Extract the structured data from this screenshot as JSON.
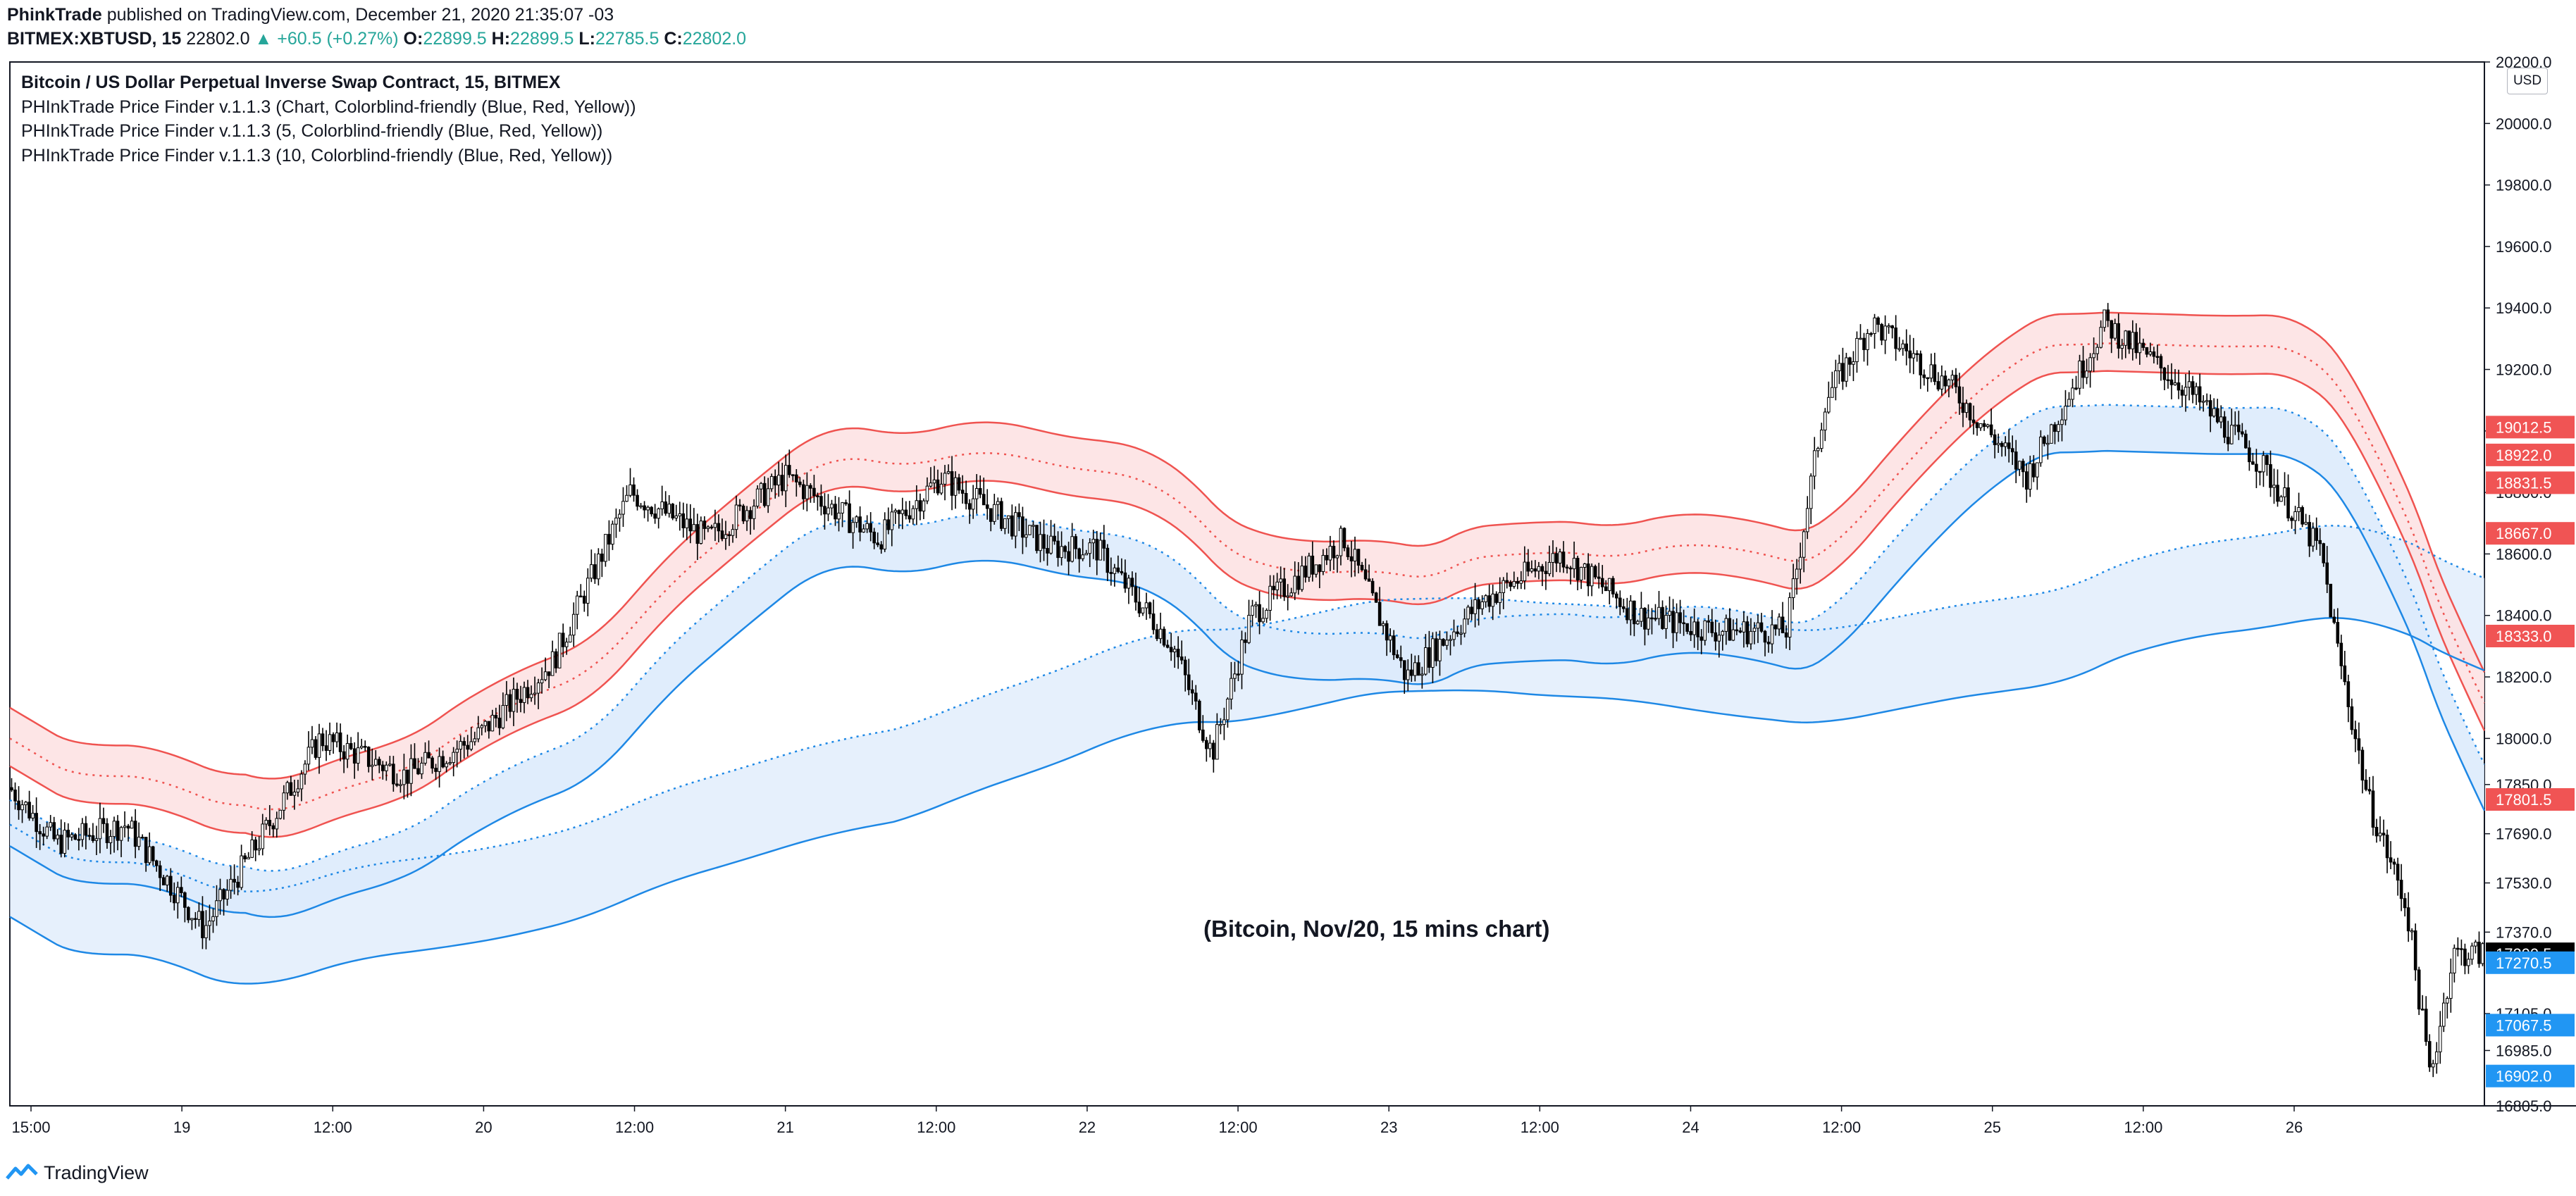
{
  "header": {
    "author": "PhinkTrade",
    "published_text": "published on TradingView.com, December 21, 2020 21:35:07 -03",
    "symbol": "BITMEX:XBTUSD, 15",
    "last": "22802.0",
    "change": "+60.5 (+0.27%)",
    "open_label": "O:",
    "open": "22899.5",
    "high_label": "H:",
    "high": "22899.5",
    "low_label": "L:",
    "low": "22785.5",
    "close_label": "C:",
    "close": "22802.0"
  },
  "legend": {
    "title": "Bitcoin / US Dollar Perpetual Inverse Swap Contract, 15, BITMEX",
    "line1": "PHInkTrade Price Finder v.1.1.3 (Chart, Colorblind-friendly (Blue, Red, Yellow))",
    "line2": "PHInkTrade Price Finder v.1.1.3 (5, Colorblind-friendly (Blue, Red, Yellow))",
    "line3": "PHInkTrade Price Finder v.1.1.3 (10, Colorblind-friendly (Blue, Red, Yellow))"
  },
  "annotation": "(Bitcoin, Nov/20, 15 mins chart)",
  "currency": "USD",
  "footer": {
    "brand": "TradingView"
  },
  "colors": {
    "up": "#26a69a",
    "candle": "#000000",
    "red_band": "#ef5350",
    "red_fill": "#fde0e2",
    "blue_band": "#1e88e5",
    "blue_fill": "#dbeafb",
    "label_red": "#f05454",
    "label_blue": "#2196f3",
    "label_black": "#000000"
  },
  "chart_data": {
    "type": "candlestick",
    "title": "Bitcoin / US Dollar Perpetual Inverse Swap Contract, 15, BITMEX",
    "timeframe": "15",
    "ylim": [
      16805,
      20200
    ],
    "y_ticks": [
      "16805.0",
      "16985.0",
      "17105.0",
      "17370.0",
      "17530.0",
      "17690.0",
      "17850.0",
      "18000.0",
      "18200.0",
      "18400.0",
      "18600.0",
      "18800.0",
      "19000.0",
      "19200.0",
      "19400.0",
      "19600.0",
      "19800.0",
      "20000.0",
      "20200.0"
    ],
    "x_ticks": [
      "15:00",
      "19",
      "12:00",
      "20",
      "12:00",
      "21",
      "12:00",
      "22",
      "12:00",
      "23",
      "12:00",
      "24",
      "12:00",
      "25",
      "12:00",
      "26"
    ],
    "price_path": [
      {
        "t": 0,
        "p": 17840
      },
      {
        "t": 0.3,
        "p": 17660
      },
      {
        "t": 0.75,
        "p": 17720
      },
      {
        "t": 1.25,
        "p": 17380
      },
      {
        "t": 1.6,
        "p": 17660
      },
      {
        "t": 2.0,
        "p": 18000
      },
      {
        "t": 2.55,
        "p": 17880
      },
      {
        "t": 3.0,
        "p": 18000
      },
      {
        "t": 3.5,
        "p": 18250
      },
      {
        "t": 4.0,
        "p": 18800
      },
      {
        "t": 4.5,
        "p": 18650
      },
      {
        "t": 5.0,
        "p": 18850
      },
      {
        "t": 5.6,
        "p": 18650
      },
      {
        "t": 6.0,
        "p": 18850
      },
      {
        "t": 6.7,
        "p": 18620
      },
      {
        "t": 7.0,
        "p": 18620
      },
      {
        "t": 7.5,
        "p": 18300
      },
      {
        "t": 7.75,
        "p": 17950
      },
      {
        "t": 8.0,
        "p": 18400
      },
      {
        "t": 8.6,
        "p": 18650
      },
      {
        "t": 9.0,
        "p": 18200
      },
      {
        "t": 9.5,
        "p": 18450
      },
      {
        "t": 10.0,
        "p": 18600
      },
      {
        "t": 10.5,
        "p": 18400
      },
      {
        "t": 11.0,
        "p": 18350
      },
      {
        "t": 11.45,
        "p": 18350
      },
      {
        "t": 11.7,
        "p": 19100
      },
      {
        "t": 12.0,
        "p": 19350
      },
      {
        "t": 12.5,
        "p": 19150
      },
      {
        "t": 13.0,
        "p": 18850
      },
      {
        "t": 13.5,
        "p": 19350
      },
      {
        "t": 14.0,
        "p": 19150
      },
      {
        "t": 14.5,
        "p": 18900
      },
      {
        "t": 14.9,
        "p": 18600
      },
      {
        "t": 15.0,
        "p": 18300
      },
      {
        "t": 15.2,
        "p": 17800
      },
      {
        "t": 15.45,
        "p": 17450
      },
      {
        "t": 15.6,
        "p": 16900
      },
      {
        "t": 15.75,
        "p": 17300
      }
    ],
    "price_labels": [
      {
        "value": "20200",
        "text": "20200.0",
        "kind": "tick"
      },
      {
        "value": "19012.5",
        "text": "19012.5",
        "kind": "red"
      },
      {
        "value": "18922.0",
        "text": "18922.0",
        "kind": "red"
      },
      {
        "value": "18831.5",
        "text": "18831.5",
        "kind": "red"
      },
      {
        "value": "18667.0",
        "text": "18667.0",
        "kind": "red"
      },
      {
        "value": "18333.0",
        "text": "18333.0",
        "kind": "red"
      },
      {
        "value": "17801.5",
        "text": "17801.5",
        "kind": "red"
      },
      {
        "value": "17299.5",
        "text": "17299.5",
        "kind": "black"
      },
      {
        "value": "17270.5",
        "text": "17270.5",
        "kind": "blue"
      },
      {
        "value": "17067.5",
        "text": "17067.5",
        "kind": "blue"
      },
      {
        "value": "16902.0",
        "text": "16902.0",
        "kind": "blue"
      }
    ]
  }
}
